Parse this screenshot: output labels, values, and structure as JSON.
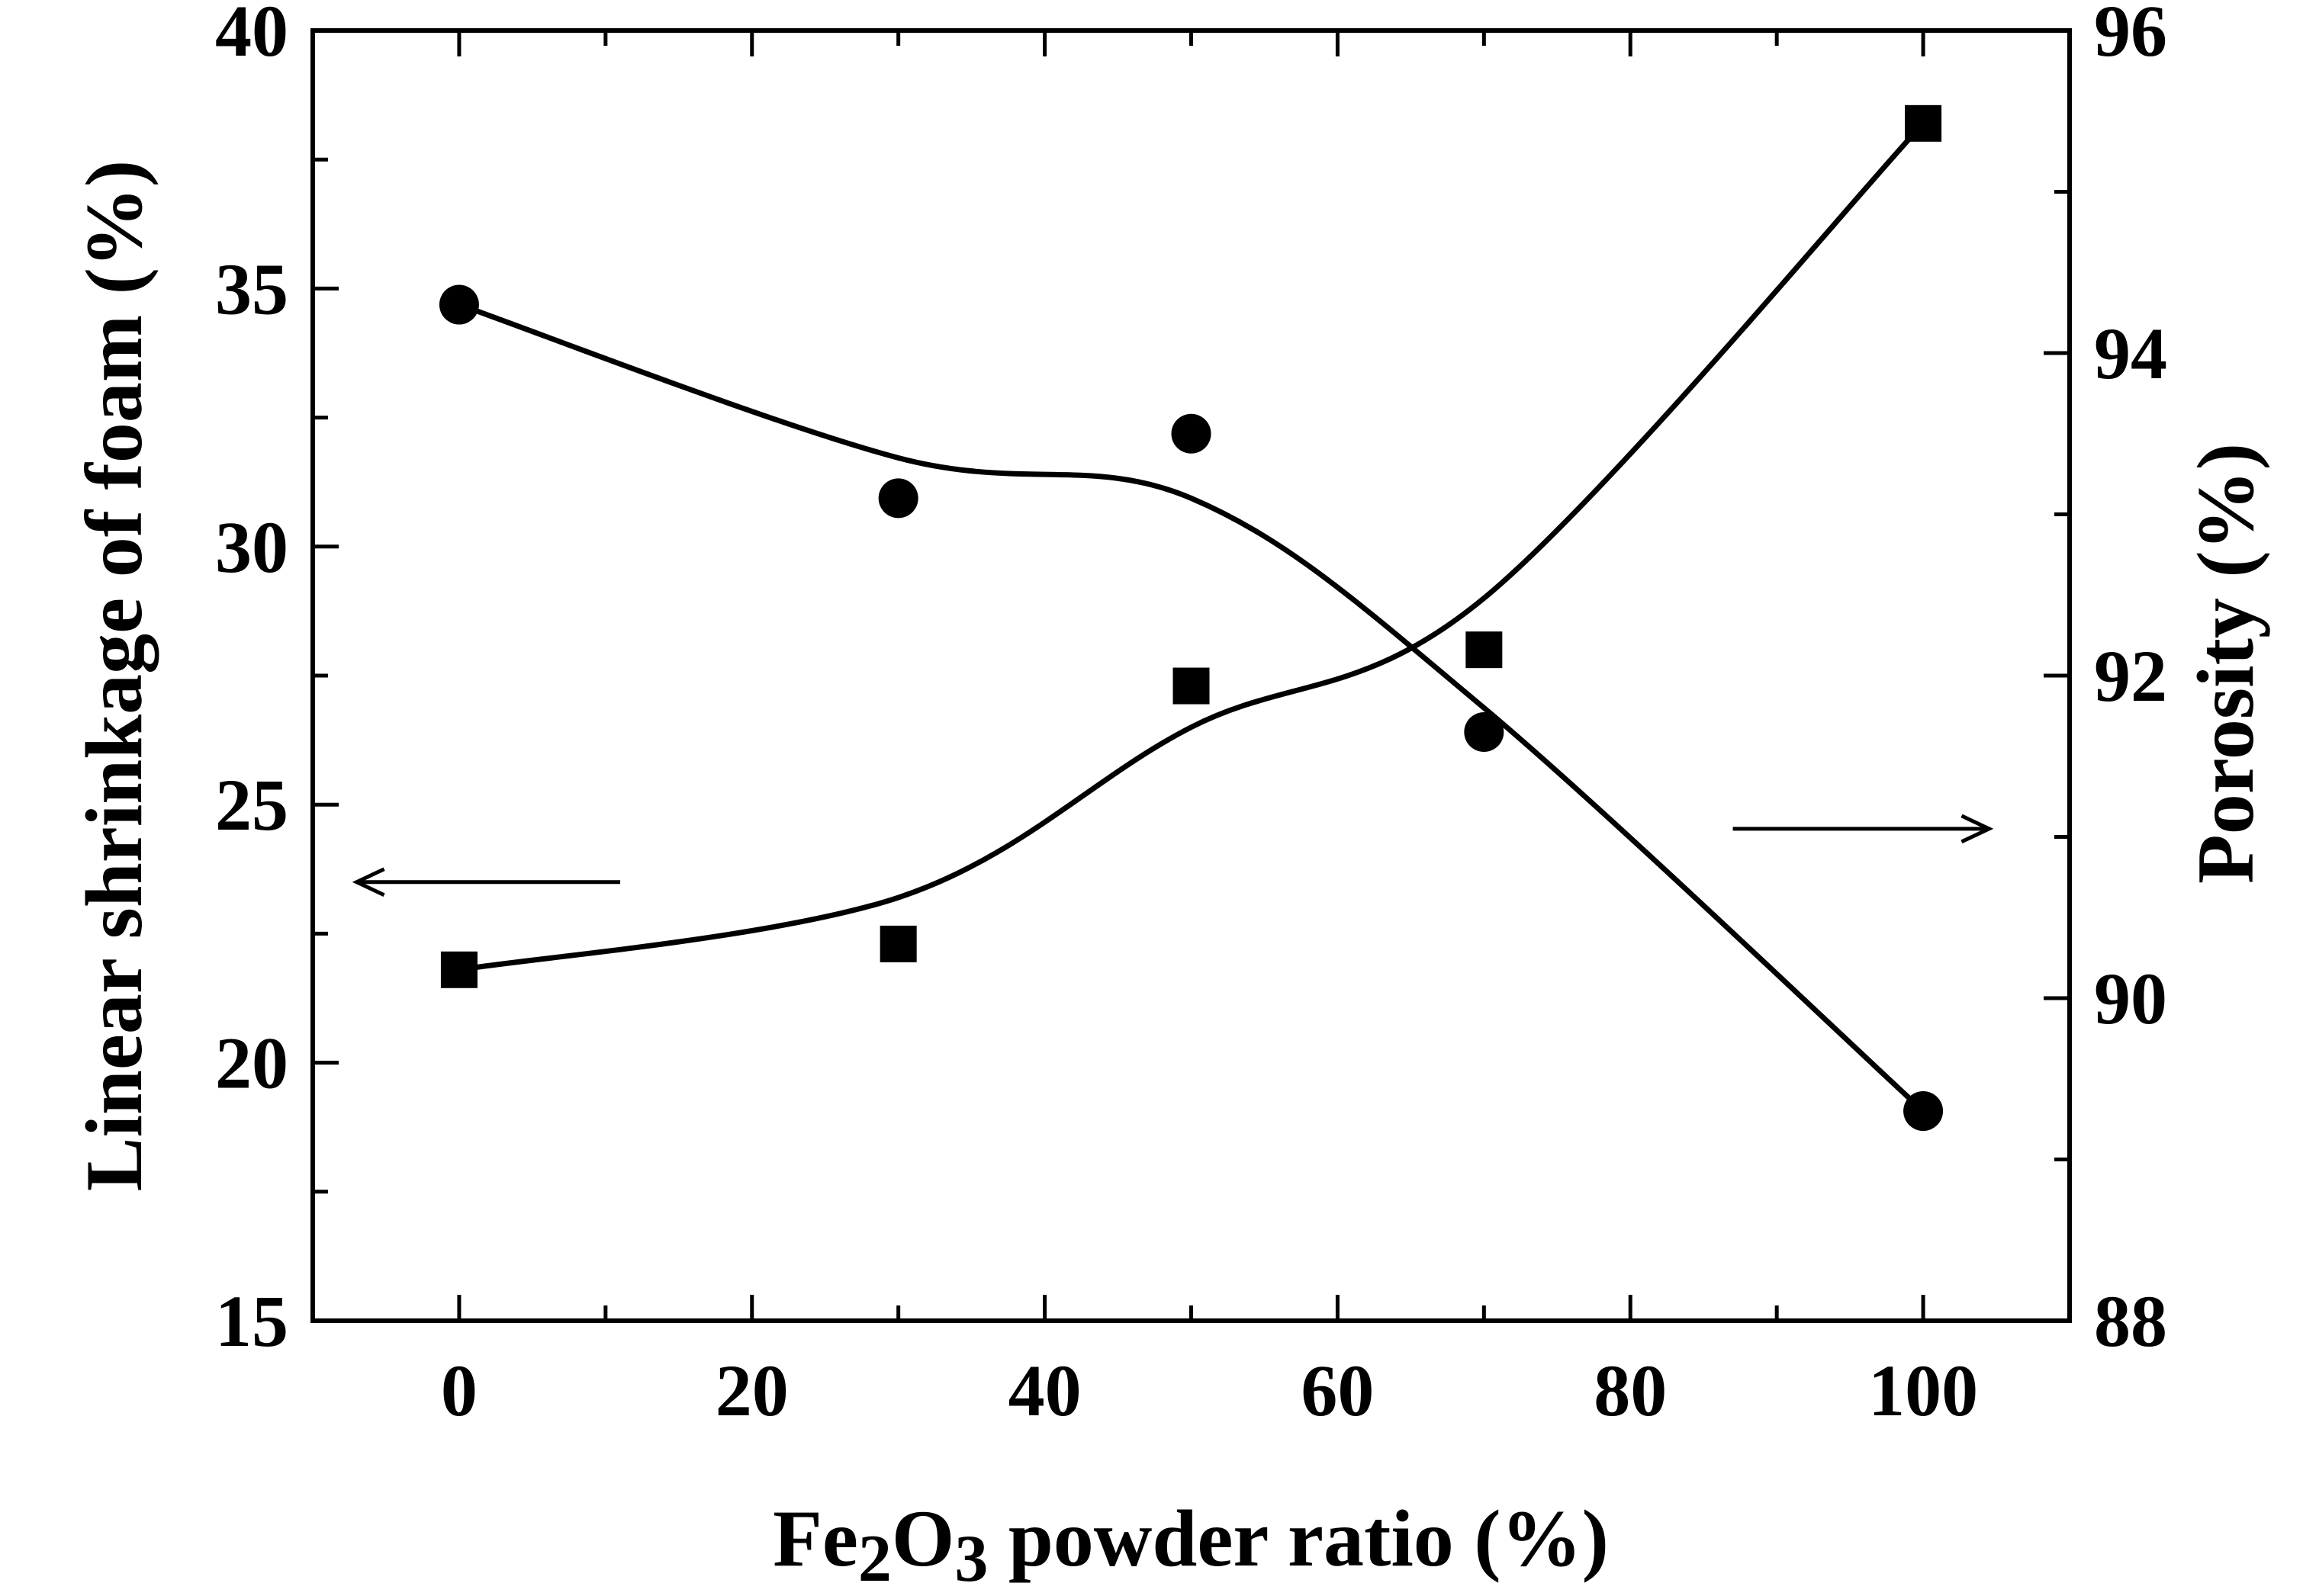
{
  "chart_data": {
    "type": "scatter",
    "title": "",
    "x_axis": {
      "label_prefix": "Fe",
      "label_sub1": "2",
      "label_mid": "O",
      "label_sub2": "3",
      "label_suffix": " powder ratio (%)",
      "range": [
        -10,
        110
      ],
      "major_ticks": [
        0,
        20,
        40,
        60,
        80,
        100
      ],
      "minor_ticks": [
        10,
        30,
        50,
        70,
        90
      ],
      "tick_labels": [
        "0",
        "20",
        "40",
        "60",
        "80",
        "100"
      ]
    },
    "y_left": {
      "label": "Linear shrinkage of foam (%)",
      "range": [
        15,
        40
      ],
      "major_ticks": [
        15,
        20,
        25,
        30,
        35,
        40
      ],
      "minor_ticks": [
        17.5,
        22.5,
        27.5,
        32.5,
        37.5
      ],
      "tick_labels": [
        "15",
        "20",
        "25",
        "30",
        "35",
        "40"
      ]
    },
    "y_right": {
      "label": "Porosity (%)",
      "range": [
        88,
        96
      ],
      "major_ticks": [
        88,
        90,
        92,
        94,
        96
      ],
      "minor_ticks": [
        89,
        91,
        93,
        95
      ],
      "tick_labels": [
        "88",
        "90",
        "92",
        "94",
        "96"
      ]
    },
    "series": [
      {
        "axis": "left",
        "marker": "square",
        "x": [
          0,
          30,
          50,
          70,
          100
        ],
        "y": [
          21.8,
          22.3,
          27.3,
          28.0,
          38.2
        ],
        "curve_y": [
          21.8,
          23.2,
          26.5,
          29.0,
          38.2
        ]
      },
      {
        "axis": "right",
        "marker": "circle",
        "x": [
          0,
          30,
          50,
          70,
          100
        ],
        "y": [
          94.3,
          93.1,
          93.5,
          91.65,
          89.3
        ],
        "curve_y": [
          94.3,
          93.35,
          93.1,
          91.8,
          89.3
        ]
      }
    ],
    "annotations": [
      {
        "type": "arrow",
        "direction": "left",
        "target_axis": "left",
        "x_from": 11,
        "x_to": -7,
        "y": 23.5
      },
      {
        "type": "arrow",
        "direction": "right",
        "target_axis": "right",
        "x_from": 87,
        "x_to": 104.5,
        "y": 91.05
      }
    ],
    "grid": false,
    "legend": "none"
  }
}
